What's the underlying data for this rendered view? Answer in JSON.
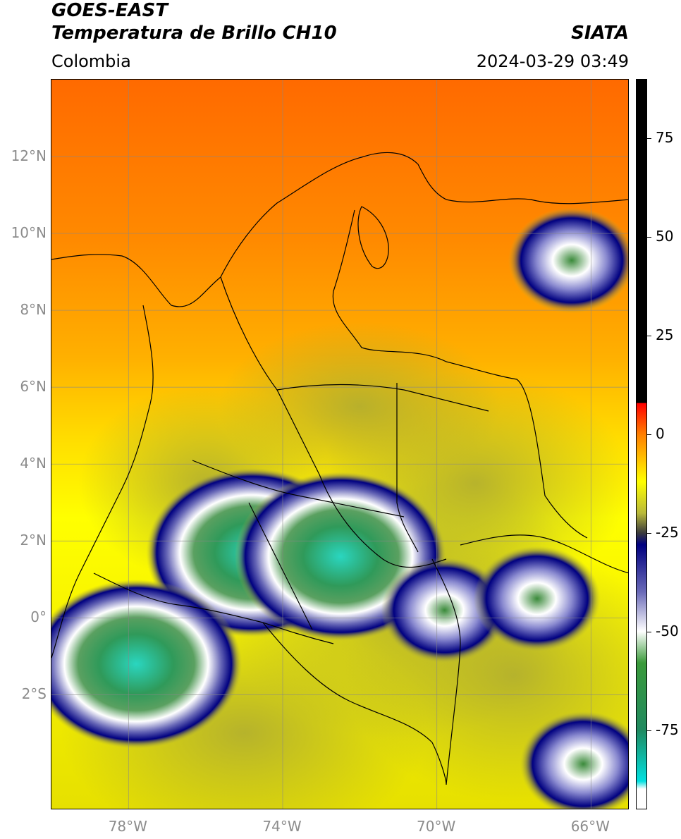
{
  "header": {
    "title_line1": "GOES-EAST",
    "title_line2": "Temperatura de Brillo CH10",
    "brand": "SIATA",
    "region": "Colombia",
    "timestamp": "2024-03-29 03:49"
  },
  "map": {
    "lon_range": [
      -80,
      -65
    ],
    "lat_range": [
      -5,
      14
    ],
    "lat_ticks": [
      {
        "value": 12,
        "label": "12°N"
      },
      {
        "value": 10,
        "label": "10°N"
      },
      {
        "value": 8,
        "label": "8°N"
      },
      {
        "value": 6,
        "label": "6°N"
      },
      {
        "value": 4,
        "label": "4°N"
      },
      {
        "value": 2,
        "label": "2°N"
      },
      {
        "value": 0,
        "label": "0°"
      },
      {
        "value": -2,
        "label": "2°S"
      }
    ],
    "lon_ticks": [
      {
        "value": -78,
        "label": "78°W"
      },
      {
        "value": -74,
        "label": "74°W"
      },
      {
        "value": -70,
        "label": "70°W"
      },
      {
        "value": -66,
        "label": "66°W"
      }
    ],
    "gridlines": true,
    "cloud_cores": [
      {
        "lon": -74.8,
        "lat": 1.7,
        "intensity": "very-cold"
      },
      {
        "lon": -72.5,
        "lat": 1.6,
        "intensity": "very-cold"
      },
      {
        "lon": -77.8,
        "lat": -1.2,
        "intensity": "very-cold"
      },
      {
        "lon": -69.8,
        "lat": 0.2,
        "intensity": "cold"
      },
      {
        "lon": -66.5,
        "lat": 9.3,
        "intensity": "cold"
      },
      {
        "lon": -66.2,
        "lat": -3.8,
        "intensity": "cold"
      },
      {
        "lon": -67.4,
        "lat": 0.5,
        "intensity": "cold"
      }
    ]
  },
  "colorbar": {
    "unit_range": [
      -95,
      90
    ],
    "ticks": [
      {
        "value": 75,
        "label": "75"
      },
      {
        "value": 50,
        "label": "50"
      },
      {
        "value": 25,
        "label": "25"
      },
      {
        "value": 0,
        "label": "0"
      },
      {
        "value": -25,
        "label": "-25"
      },
      {
        "value": -50,
        "label": "-50"
      },
      {
        "value": -75,
        "label": "-75"
      }
    ],
    "stops": [
      {
        "value": 90,
        "color": "#000000"
      },
      {
        "value": 8,
        "color": "#000000"
      },
      {
        "value": 7.9,
        "color": "#ff0000"
      },
      {
        "value": 0,
        "color": "#ff7f00"
      },
      {
        "value": -12,
        "color": "#ffff00"
      },
      {
        "value": -20,
        "color": "#b9b93a"
      },
      {
        "value": -25,
        "color": "#3c3c3c"
      },
      {
        "value": -28,
        "color": "#000080"
      },
      {
        "value": -40,
        "color": "#6a6ab8"
      },
      {
        "value": -50,
        "color": "#ffffff"
      },
      {
        "value": -58,
        "color": "#3a9a3a"
      },
      {
        "value": -75,
        "color": "#208a60"
      },
      {
        "value": -88,
        "color": "#00e0e0"
      },
      {
        "value": -90,
        "color": "#ffffff"
      }
    ]
  }
}
